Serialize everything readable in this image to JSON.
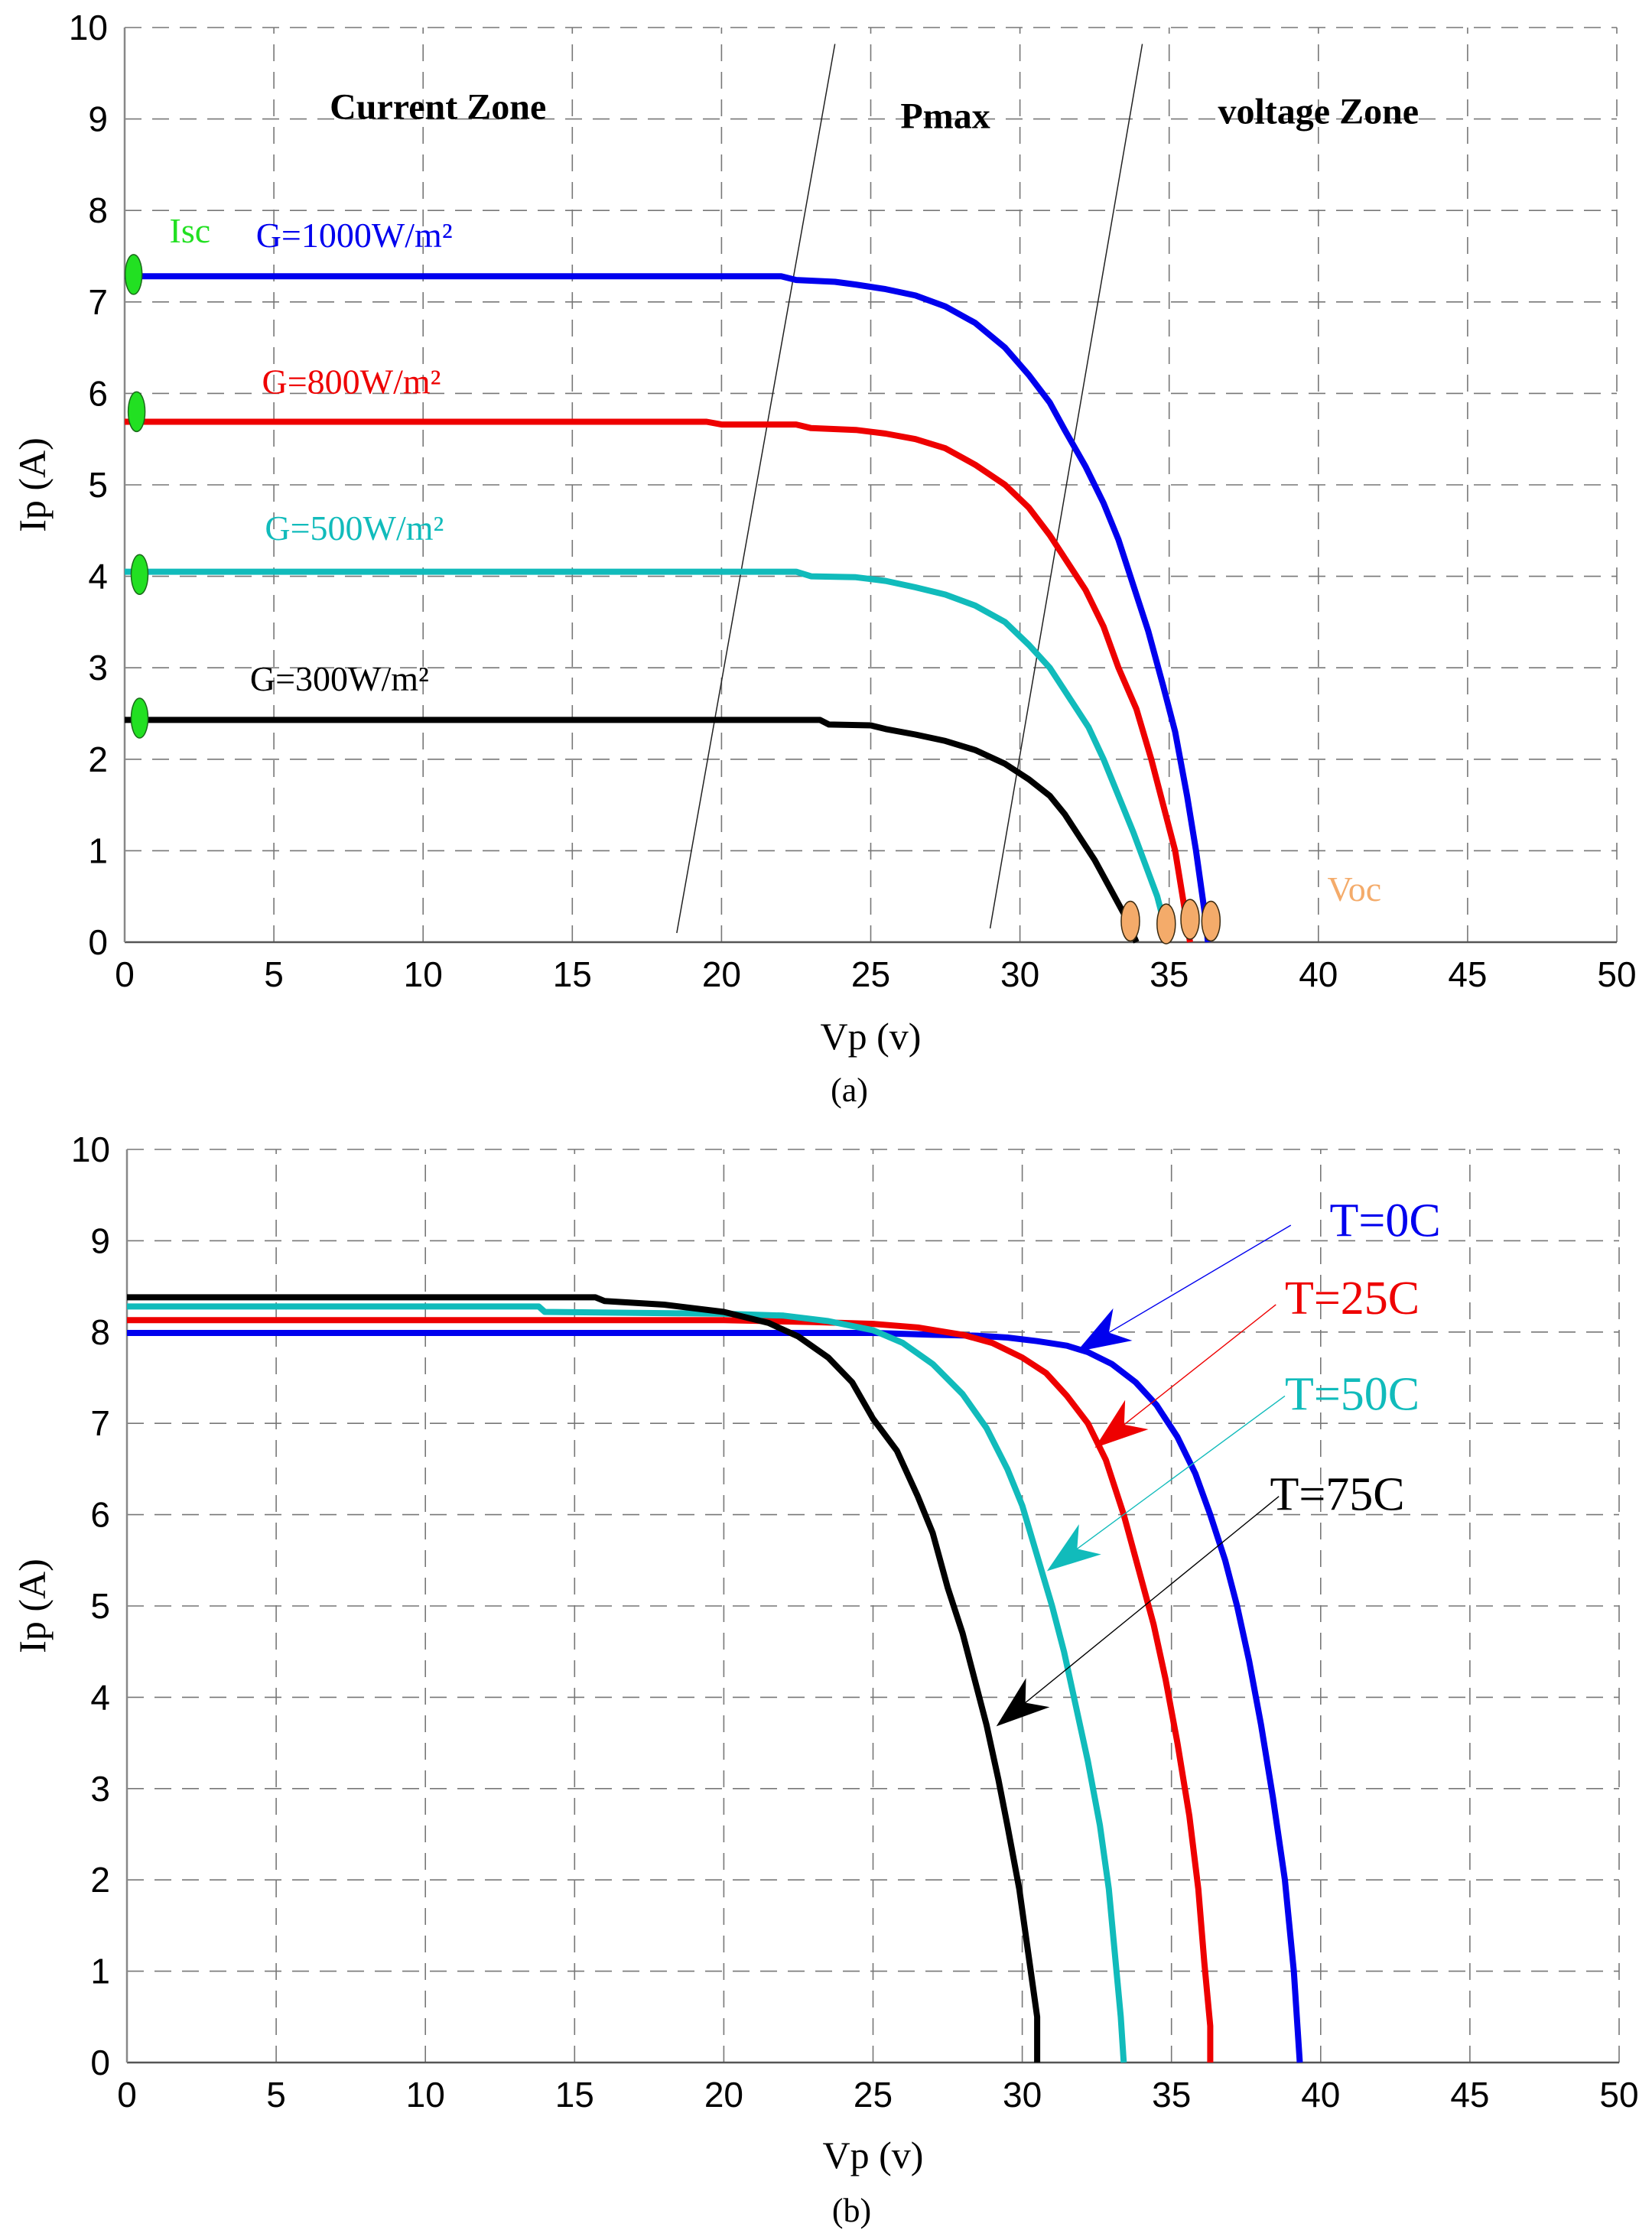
{
  "chart_data": [
    {
      "id": "a",
      "type": "line",
      "caption": "(a)",
      "xlabel": "Vp (v)",
      "ylabel": "Ip (A)",
      "xlim": [
        0,
        50
      ],
      "ylim": [
        0,
        10
      ],
      "xticks": [
        0,
        5,
        10,
        15,
        20,
        25,
        30,
        35,
        40,
        45,
        50
      ],
      "yticks": [
        0,
        1,
        2,
        3,
        4,
        5,
        6,
        7,
        8,
        9,
        10
      ],
      "grid": true,
      "zones": [
        {
          "label": "Current Zone",
          "v": 10.5,
          "i": 9.0
        },
        {
          "label": "Pmax",
          "v": 27.5,
          "i": 8.9
        },
        {
          "label": "voltage Zone",
          "v": 40,
          "i": 8.95
        }
      ],
      "boundaries": [
        {
          "from": [
            18.5,
            0.1
          ],
          "to": [
            23.8,
            9.82
          ]
        },
        {
          "from": [
            29.0,
            0.15
          ],
          "to": [
            34.1,
            9.82
          ]
        }
      ],
      "isc_label": "Isc",
      "voc_label": "Voc",
      "isc_color": "#22e022",
      "voc_color": "#f4ab6a",
      "series": [
        {
          "name": "G=1000W/m²",
          "color": "#0000ee",
          "label_pos": [
            4.4,
            7.6
          ],
          "points": [
            [
              0,
              7.28
            ],
            [
              22,
              7.28
            ],
            [
              22.5,
              7.24
            ],
            [
              23.8,
              7.22
            ],
            [
              24.5,
              7.19
            ],
            [
              25.5,
              7.14
            ],
            [
              26.5,
              7.07
            ],
            [
              27.5,
              6.95
            ],
            [
              28.5,
              6.77
            ],
            [
              29.5,
              6.5
            ],
            [
              30.3,
              6.2
            ],
            [
              31,
              5.9
            ],
            [
              31.5,
              5.6
            ],
            [
              32.2,
              5.2
            ],
            [
              32.8,
              4.8
            ],
            [
              33.3,
              4.4
            ],
            [
              33.8,
              3.9
            ],
            [
              34.3,
              3.4
            ],
            [
              34.8,
              2.8
            ],
            [
              35.2,
              2.3
            ],
            [
              35.6,
              1.6
            ],
            [
              35.9,
              1.0
            ],
            [
              36.2,
              0.3
            ],
            [
              36.3,
              0.0
            ]
          ]
        },
        {
          "name": "G=800W/m²",
          "color": "#ee0000",
          "label_pos": [
            4.6,
            6.0
          ],
          "points": [
            [
              0,
              5.69
            ],
            [
              19.5,
              5.69
            ],
            [
              20,
              5.66
            ],
            [
              22.5,
              5.66
            ],
            [
              23,
              5.62
            ],
            [
              24.5,
              5.6
            ],
            [
              25.5,
              5.56
            ],
            [
              26.5,
              5.5
            ],
            [
              27.5,
              5.4
            ],
            [
              28.5,
              5.22
            ],
            [
              29.5,
              5.0
            ],
            [
              30.3,
              4.75
            ],
            [
              31,
              4.45
            ],
            [
              31.5,
              4.2
            ],
            [
              32.2,
              3.85
            ],
            [
              32.8,
              3.45
            ],
            [
              33.3,
              3.0
            ],
            [
              33.9,
              2.55
            ],
            [
              34.4,
              2.0
            ],
            [
              34.8,
              1.5
            ],
            [
              35.2,
              1.0
            ],
            [
              35.5,
              0.4
            ],
            [
              35.7,
              0.0
            ]
          ]
        },
        {
          "name": "G=500W/m²",
          "color": "#11bbbb",
          "label_pos": [
            4.7,
            4.4
          ],
          "points": [
            [
              0,
              4.05
            ],
            [
              22.5,
              4.05
            ],
            [
              23,
              4.0
            ],
            [
              24.5,
              3.99
            ],
            [
              25.5,
              3.95
            ],
            [
              26.5,
              3.88
            ],
            [
              27.5,
              3.8
            ],
            [
              28.5,
              3.68
            ],
            [
              29.5,
              3.5
            ],
            [
              30.3,
              3.25
            ],
            [
              31,
              3.0
            ],
            [
              31.5,
              2.75
            ],
            [
              32.3,
              2.35
            ],
            [
              32.8,
              2.0
            ],
            [
              33.3,
              1.6
            ],
            [
              33.8,
              1.2
            ],
            [
              34.2,
              0.85
            ],
            [
              34.6,
              0.5
            ],
            [
              34.8,
              0.25
            ]
          ]
        },
        {
          "name": "G=300W/m²",
          "color": "#000000",
          "label_pos": [
            4.2,
            2.75
          ],
          "points": [
            [
              0,
              2.43
            ],
            [
              23.3,
              2.43
            ],
            [
              23.6,
              2.38
            ],
            [
              25,
              2.37
            ],
            [
              25.5,
              2.33
            ],
            [
              26.5,
              2.27
            ],
            [
              27.5,
              2.2
            ],
            [
              28.5,
              2.1
            ],
            [
              29.5,
              1.95
            ],
            [
              30.3,
              1.78
            ],
            [
              31,
              1.6
            ],
            [
              31.5,
              1.4
            ],
            [
              32,
              1.15
            ],
            [
              32.5,
              0.9
            ],
            [
              33,
              0.6
            ],
            [
              33.5,
              0.3
            ],
            [
              33.9,
              0.0
            ]
          ]
        }
      ],
      "isc_points": [
        [
          0.3,
          7.3
        ],
        [
          0.4,
          5.8
        ],
        [
          0.5,
          4.02
        ],
        [
          0.5,
          2.45
        ]
      ],
      "voc_points": [
        [
          33.7,
          0.23
        ],
        [
          34.9,
          0.2
        ],
        [
          35.7,
          0.25
        ],
        [
          36.4,
          0.23
        ]
      ],
      "isc_label_pos": [
        1.5,
        7.65
      ],
      "voc_label_pos": [
        40.3,
        0.45
      ]
    },
    {
      "id": "b",
      "type": "line",
      "caption": "(b)",
      "xlabel": "Vp (v)",
      "ylabel": "Ip (A)",
      "xlim": [
        0,
        50
      ],
      "ylim": [
        0,
        10
      ],
      "xticks": [
        0,
        5,
        10,
        15,
        20,
        25,
        30,
        35,
        40,
        45,
        50
      ],
      "yticks": [
        0,
        1,
        2,
        3,
        4,
        5,
        6,
        7,
        8,
        9,
        10
      ],
      "grid": true,
      "series": [
        {
          "name": "T=0C",
          "color": "#0000ee",
          "label_pos": [
            40.3,
            9.05
          ],
          "arrow": {
            "from": [
              39.0,
              9.17
            ],
            "to": [
              31.9,
              7.8
            ]
          },
          "points": [
            [
              0,
              7.99
            ],
            [
              25,
              7.99
            ],
            [
              27,
              7.97
            ],
            [
              28.5,
              7.96
            ],
            [
              29.5,
              7.94
            ],
            [
              30.5,
              7.9
            ],
            [
              31.5,
              7.85
            ],
            [
              32.2,
              7.78
            ],
            [
              33,
              7.65
            ],
            [
              33.8,
              7.45
            ],
            [
              34.5,
              7.2
            ],
            [
              35.2,
              6.85
            ],
            [
              35.8,
              6.45
            ],
            [
              36.3,
              6.0
            ],
            [
              36.8,
              5.5
            ],
            [
              37.2,
              5.0
            ],
            [
              37.6,
              4.4
            ],
            [
              38,
              3.7
            ],
            [
              38.4,
              2.9
            ],
            [
              38.8,
              2.0
            ],
            [
              39.1,
              1.0
            ],
            [
              39.3,
              0.0
            ]
          ]
        },
        {
          "name": "T=25C",
          "color": "#ee0000",
          "label_pos": [
            38.8,
            8.2
          ],
          "arrow": {
            "from": [
              38.5,
              8.3
            ],
            "to": [
              32.5,
              6.75
            ]
          },
          "points": [
            [
              0,
              8.13
            ],
            [
              20,
              8.13
            ],
            [
              23,
              8.11
            ],
            [
              25,
              8.09
            ],
            [
              26.5,
              8.05
            ],
            [
              28,
              7.97
            ],
            [
              29,
              7.88
            ],
            [
              30,
              7.72
            ],
            [
              30.8,
              7.55
            ],
            [
              31.5,
              7.3
            ],
            [
              32.2,
              7.0
            ],
            [
              32.8,
              6.6
            ],
            [
              33.4,
              6.0
            ],
            [
              33.9,
              5.4
            ],
            [
              34.4,
              4.8
            ],
            [
              34.8,
              4.2
            ],
            [
              35.2,
              3.5
            ],
            [
              35.6,
              2.7
            ],
            [
              35.9,
              1.9
            ],
            [
              36.1,
              1.1
            ],
            [
              36.3,
              0.4
            ],
            [
              36.3,
              0.0
            ]
          ]
        },
        {
          "name": "T=50C",
          "color": "#11bbbb",
          "label_pos": [
            38.8,
            7.15
          ],
          "arrow": {
            "from": [
              38.8,
              7.3
            ],
            "to": [
              30.9,
              5.4
            ]
          },
          "points": [
            [
              0,
              8.28
            ],
            [
              13.8,
              8.28
            ],
            [
              14,
              8.22
            ],
            [
              20,
              8.2
            ],
            [
              22,
              8.18
            ],
            [
              23.5,
              8.12
            ],
            [
              25,
              8.02
            ],
            [
              26,
              7.88
            ],
            [
              27,
              7.65
            ],
            [
              28,
              7.32
            ],
            [
              28.8,
              6.95
            ],
            [
              29.5,
              6.5
            ],
            [
              30,
              6.1
            ],
            [
              30.5,
              5.55
            ],
            [
              31,
              5.0
            ],
            [
              31.4,
              4.5
            ],
            [
              31.8,
              3.9
            ],
            [
              32.2,
              3.3
            ],
            [
              32.6,
              2.6
            ],
            [
              32.9,
              1.9
            ],
            [
              33.1,
              1.2
            ],
            [
              33.3,
              0.5
            ],
            [
              33.4,
              0.0
            ]
          ]
        },
        {
          "name": "T=75C",
          "color": "#000000",
          "label_pos": [
            38.3,
            6.05
          ],
          "arrow": {
            "from": [
              38.6,
              6.2
            ],
            "to": [
              29.2,
              3.7
            ]
          },
          "points": [
            [
              0,
              8.38
            ],
            [
              15.7,
              8.38
            ],
            [
              16,
              8.34
            ],
            [
              18,
              8.3
            ],
            [
              20,
              8.22
            ],
            [
              21.5,
              8.1
            ],
            [
              22.5,
              7.95
            ],
            [
              23.5,
              7.72
            ],
            [
              24.3,
              7.45
            ],
            [
              25,
              7.05
            ],
            [
              25.8,
              6.7
            ],
            [
              26.5,
              6.2
            ],
            [
              27,
              5.8
            ],
            [
              27.5,
              5.2
            ],
            [
              28,
              4.7
            ],
            [
              28.4,
              4.2
            ],
            [
              28.8,
              3.7
            ],
            [
              29.2,
              3.1
            ],
            [
              29.5,
              2.6
            ],
            [
              29.9,
              1.9
            ],
            [
              30.2,
              1.2
            ],
            [
              30.5,
              0.5
            ],
            [
              30.5,
              0.0
            ]
          ]
        }
      ]
    }
  ]
}
